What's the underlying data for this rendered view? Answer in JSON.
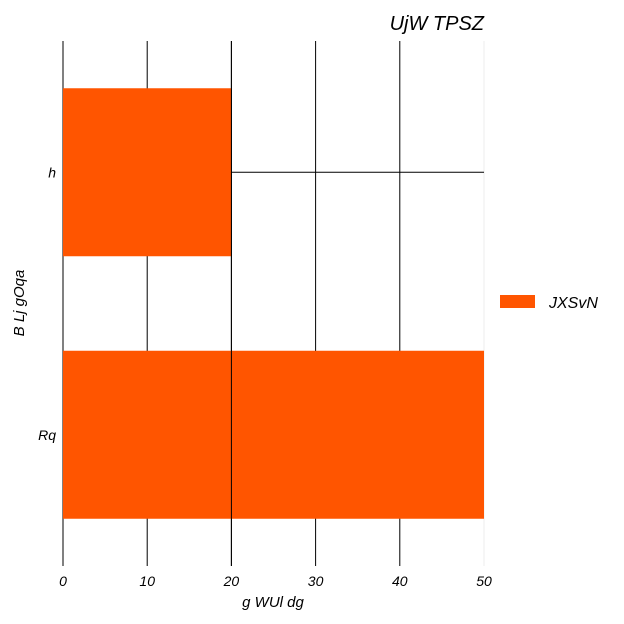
{
  "chart_data": {
    "type": "bar",
    "orientation": "horizontal",
    "title": "UjW  TPSZ",
    "xlabel": "g WUl dg",
    "ylabel": "B Lj gOqa",
    "categories": [
      "Rq",
      "h"
    ],
    "series": [
      {
        "name": "JXSvN",
        "values": [
          50,
          20
        ],
        "color": "#ff5500"
      }
    ],
    "xlim": [
      0,
      50
    ],
    "xticks": [
      "0",
      "10",
      "20",
      "30",
      "40",
      "50"
    ],
    "grid": true,
    "legend_position": "right"
  }
}
